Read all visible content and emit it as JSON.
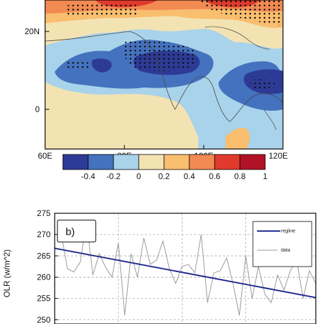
{
  "chart_data": [
    {
      "type": "heatmap",
      "x_ticks": [
        "60E",
        "80E",
        "100E",
        "120E"
      ],
      "y_ticks": [
        "20N",
        "0"
      ],
      "colorbar": {
        "labels": [
          "-0.4",
          "-0.2",
          "0",
          "0.2",
          "0.4",
          "0.6",
          "0.8",
          "1"
        ],
        "colors": [
          "#2d3a96",
          "#4472be",
          "#a9d3ea",
          "#f3e3b2",
          "#f9be6e",
          "#f28a52",
          "#df3a2c",
          "#b11226"
        ]
      }
    },
    {
      "type": "line",
      "panel_label": "b)",
      "ylabel": "OLR (w/m^2)",
      "y_ticks": [
        "275",
        "270",
        "265",
        "260",
        "255",
        "250"
      ],
      "ylim": [
        249,
        275
      ],
      "grid": true,
      "legend": {
        "position": "top-right",
        "entries": [
          "regline",
          "data"
        ]
      },
      "series": [
        {
          "name": "regline",
          "color": "#222c8f",
          "x": [
            1,
            41
          ],
          "y": [
            266.5,
            255.2
          ]
        },
        {
          "name": "data",
          "color": "#999999",
          "x": [
            1,
            2,
            3,
            4,
            5,
            6,
            7,
            8,
            9,
            10,
            11,
            12,
            13,
            14,
            15,
            16,
            17,
            18,
            19,
            20,
            21,
            22,
            23,
            24,
            25,
            26,
            27,
            28,
            29,
            30,
            31,
            32,
            33,
            34,
            35,
            36,
            37,
            38,
            39,
            40,
            41
          ],
          "y": [
            270.5,
            262.0,
            261.2,
            263.5,
            273.0,
            260.5,
            265.5,
            262.3,
            260.0,
            268.0,
            251.0,
            265.5,
            260.0,
            269.2,
            263.0,
            264.0,
            268.5,
            262.0,
            258.5,
            262.5,
            263.0,
            261.0,
            270.0,
            254.0,
            261.0,
            261.5,
            264.5,
            258.5,
            251.0,
            265.0,
            255.0,
            262.5,
            256.0,
            254.0,
            260.5,
            257.0,
            261.5,
            264.0,
            255.0,
            261.5,
            258.5
          ]
        }
      ]
    }
  ]
}
